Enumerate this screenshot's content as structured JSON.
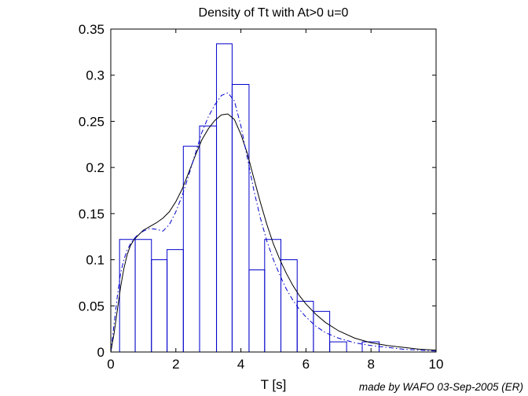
{
  "chart_data": {
    "type": "bar",
    "title": "Density of Tt with At>0  u=0",
    "xlabel": "T [s]",
    "ylabel": "",
    "credit": "made by WAFO 03-Sep-2005 (ER)",
    "xlim": [
      0,
      10
    ],
    "ylim": [
      0,
      0.35
    ],
    "xticks": [
      0,
      2,
      4,
      6,
      8,
      10
    ],
    "yticks": [
      0,
      0.05,
      0.1,
      0.15,
      0.2,
      0.25,
      0.3,
      0.35
    ],
    "xtick_labels": [
      "0",
      "2",
      "4",
      "6",
      "8",
      "10"
    ],
    "ytick_labels": [
      "0",
      "0.05",
      "0.1",
      "0.15",
      "0.2",
      "0.25",
      "0.3",
      "0.35"
    ],
    "grid": false,
    "histogram": {
      "bin_edges": [
        0.27,
        0.75,
        1.25,
        1.73,
        2.23,
        2.73,
        3.25,
        3.73,
        4.25,
        4.73,
        5.23,
        5.73,
        6.23,
        6.73,
        7.25,
        7.73,
        8.25
      ],
      "values": [
        0.122,
        0.122,
        0.1,
        0.111,
        0.223,
        0.245,
        0.334,
        0.29,
        0.089,
        0.122,
        0.1,
        0.055,
        0.044,
        0.011,
        0.0,
        0.011
      ],
      "color": "#0000cc"
    },
    "series": [
      {
        "style": "solid",
        "color": "#000000",
        "x": [
          0,
          0.1,
          0.2,
          0.3,
          0.4,
          0.5,
          0.6,
          0.7,
          0.8,
          1.0,
          1.2,
          1.4,
          1.6,
          1.8,
          2.0,
          2.2,
          2.4,
          2.6,
          2.8,
          3.0,
          3.2,
          3.4,
          3.6,
          3.8,
          4.0,
          4.2,
          4.4,
          4.6,
          4.8,
          5.0,
          5.2,
          5.4,
          5.6,
          5.8,
          6.0,
          6.3,
          6.6,
          7.0,
          7.5,
          8.0,
          8.5,
          9.0,
          9.5,
          10.0
        ],
        "y": [
          0,
          0.02,
          0.045,
          0.07,
          0.09,
          0.105,
          0.115,
          0.121,
          0.125,
          0.132,
          0.136,
          0.14,
          0.145,
          0.152,
          0.163,
          0.177,
          0.195,
          0.213,
          0.23,
          0.242,
          0.251,
          0.257,
          0.258,
          0.252,
          0.236,
          0.215,
          0.188,
          0.162,
          0.138,
          0.117,
          0.1,
          0.085,
          0.072,
          0.061,
          0.052,
          0.041,
          0.032,
          0.023,
          0.015,
          0.01,
          0.007,
          0.005,
          0.003,
          0.002
        ]
      },
      {
        "style": "dashdot",
        "color": "#0000cc",
        "x": [
          0,
          0.1,
          0.2,
          0.3,
          0.4,
          0.5,
          0.6,
          0.7,
          0.8,
          1.0,
          1.2,
          1.4,
          1.6,
          1.8,
          2.0,
          2.2,
          2.4,
          2.6,
          2.8,
          3.0,
          3.2,
          3.4,
          3.6,
          3.8,
          4.0,
          4.2,
          4.4,
          4.6,
          4.8,
          5.0,
          5.2,
          5.4,
          5.6,
          5.8,
          6.0,
          6.3,
          6.6,
          7.0,
          7.5,
          8.0,
          8.5,
          9.0,
          9.5,
          10.0
        ],
        "y": [
          0,
          0.03,
          0.06,
          0.085,
          0.1,
          0.11,
          0.117,
          0.122,
          0.126,
          0.131,
          0.134,
          0.133,
          0.131,
          0.138,
          0.152,
          0.17,
          0.192,
          0.215,
          0.238,
          0.255,
          0.268,
          0.278,
          0.281,
          0.272,
          0.245,
          0.21,
          0.175,
          0.145,
          0.12,
          0.1,
          0.083,
          0.068,
          0.056,
          0.046,
          0.038,
          0.028,
          0.021,
          0.015,
          0.01,
          0.007,
          0.005,
          0.003,
          0.002,
          0.001
        ]
      }
    ]
  }
}
